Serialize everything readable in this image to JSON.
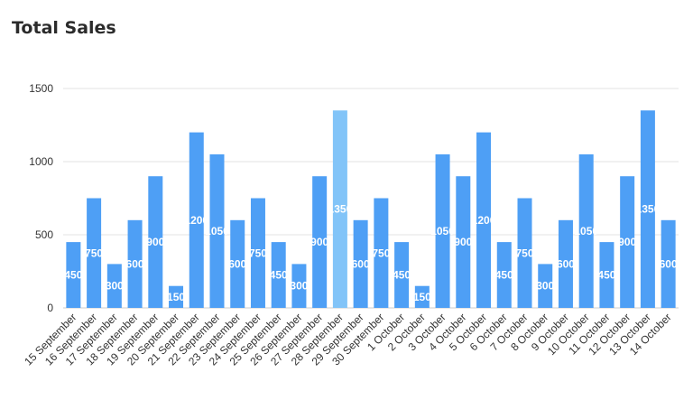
{
  "page": {
    "title": "Total Sales"
  },
  "chart_data": {
    "type": "bar",
    "title": "Total Sales",
    "xlabel": "",
    "ylabel": "",
    "ylim": [
      0,
      1500
    ],
    "yticks": [
      0,
      500,
      1000,
      1500
    ],
    "grid": true,
    "categories": [
      "15 September",
      "16 September",
      "17 September",
      "18 September",
      "19 September",
      "20 September",
      "21 September",
      "22 September",
      "23 September",
      "24 September",
      "25 September",
      "26 September",
      "27 September",
      "28 September",
      "29 September",
      "30 September",
      "1 October",
      "2 October",
      "3 October",
      "4 October",
      "5 October",
      "6 October",
      "7 October",
      "8 October",
      "9 October",
      "10 October",
      "11 October",
      "12 October",
      "13 October",
      "14 October"
    ],
    "values": [
      450,
      750,
      300,
      600,
      900,
      150,
      1200,
      1050,
      600,
      750,
      450,
      300,
      900,
      1350,
      600,
      750,
      450,
      150,
      1050,
      900,
      1200,
      450,
      750,
      300,
      600,
      1050,
      450,
      900,
      1350,
      600
    ],
    "bar_color": "#4e9ff5",
    "highlight_color": "#82c4f8",
    "highlight_index": 13
  }
}
